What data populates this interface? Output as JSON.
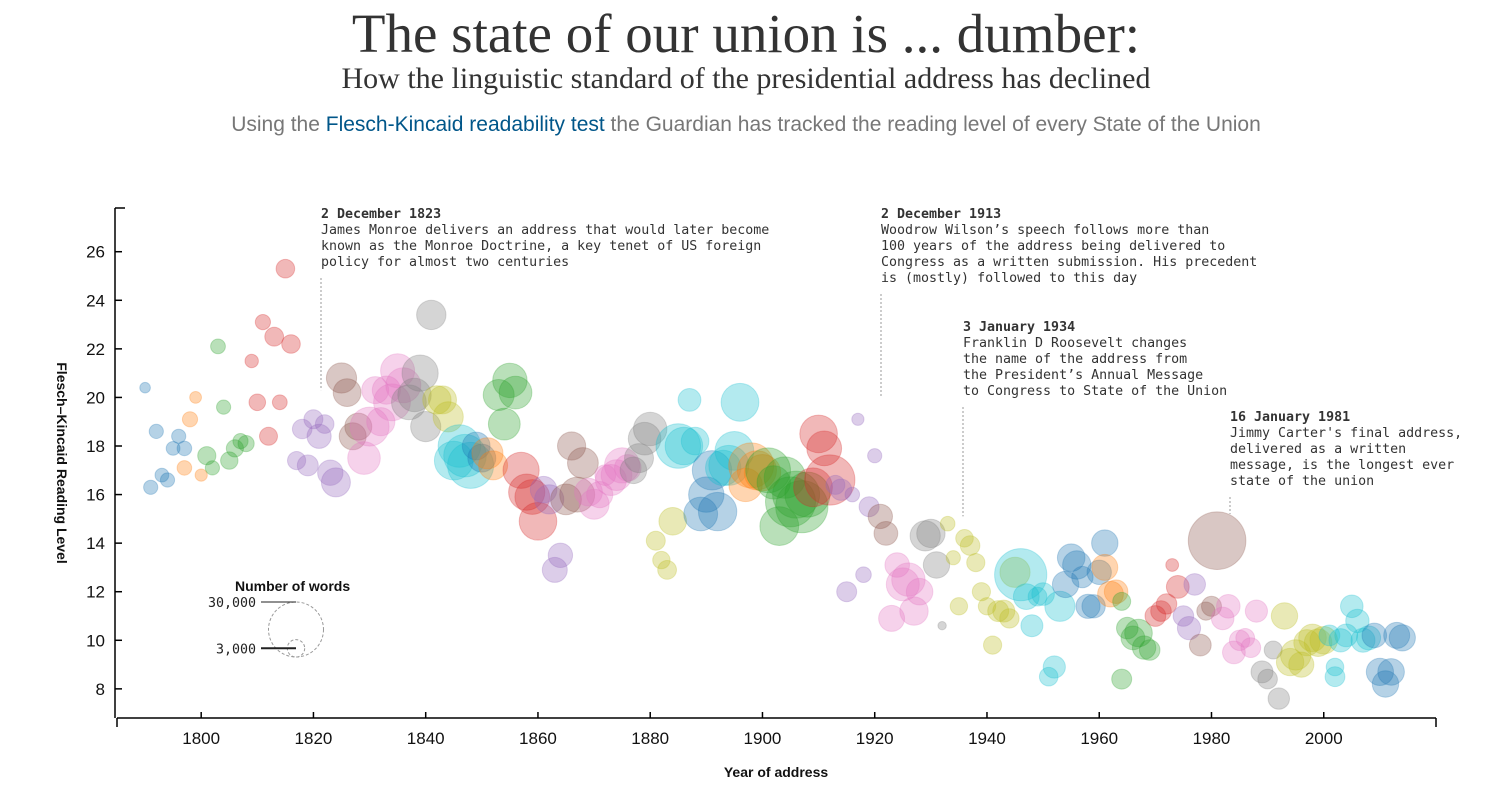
{
  "header": {
    "title": "The state of our union is ... dumber:",
    "subtitle": "How the linguistic standard of the presidential address has declined",
    "intro_prefix": "Using the ",
    "intro_link": "Flesch-Kincaid readability test",
    "intro_suffix": " the Guardian has tracked the reading level of every State of the Union"
  },
  "annotations": [
    {
      "date": "2 December 1823",
      "text": "James Monroe delivers an address that would later become\nknown as the Monroe Doctrine, a key tenet of US foreign\npolicy for almost two centuries"
    },
    {
      "date": "2 December 1913",
      "text": "Woodrow Wilson’s speech follows more than\n100 years of the address being delivered to\nCongress as a written submission. His precedent\nis (mostly) followed to this day"
    },
    {
      "date": "3 January 1934",
      "text": "Franklin D Roosevelt changes\nthe name of the address from\nthe President’s Annual Message\nto Congress to State of the Union"
    },
    {
      "date": "16 January 1981",
      "text": "Jimmy Carter's final address,\ndelivered as a written\nmessage, is the longest ever\nstate of the union"
    }
  ],
  "legend": {
    "title": "Number of words",
    "entries": [
      {
        "label": "30,000",
        "words": 30000
      },
      {
        "label": "3,000",
        "words": 3000
      }
    ]
  },
  "chart_data": {
    "type": "scatter",
    "xlabel": "Year of address",
    "ylabel": "Flesch–Kincaid Reading Level",
    "xlim": [
      1785,
      2020
    ],
    "ylim": [
      6.8,
      27.8
    ],
    "xticks": [
      1800,
      1820,
      1840,
      1860,
      1880,
      1900,
      1920,
      1940,
      1960,
      1980,
      2000
    ],
    "yticks": [
      8,
      10,
      12,
      14,
      16,
      18,
      20,
      22,
      24,
      26
    ],
    "size_encoding": "Number of words",
    "color_encoding": "President",
    "points": [
      [
        1790,
        20.4,
        1100,
        "#1f77b4"
      ],
      [
        1791,
        16.3,
        2000,
        "#1f77b4"
      ],
      [
        1792,
        18.6,
        2000,
        "#1f77b4"
      ],
      [
        1793,
        16.8,
        1900,
        "#1f77b4"
      ],
      [
        1794,
        16.6,
        2000,
        "#1f77b4"
      ],
      [
        1795,
        17.9,
        1900,
        "#1f77b4"
      ],
      [
        1796,
        18.4,
        2000,
        "#1f77b4"
      ],
      [
        1797,
        17.9,
        2100,
        "#1f77b4"
      ],
      [
        1797,
        17.1,
        2100,
        "#ff7f0e"
      ],
      [
        1798,
        19.1,
        2300,
        "#ff7f0e"
      ],
      [
        1799,
        20.0,
        1400,
        "#ff7f0e"
      ],
      [
        1800,
        16.8,
        1500,
        "#ff7f0e"
      ],
      [
        1801,
        17.6,
        3300,
        "#2ca02c"
      ],
      [
        1802,
        17.1,
        2000,
        "#2ca02c"
      ],
      [
        1803,
        22.1,
        2200,
        "#2ca02c"
      ],
      [
        1804,
        19.6,
        2000,
        "#2ca02c"
      ],
      [
        1805,
        17.4,
        3000,
        "#2ca02c"
      ],
      [
        1806,
        17.9,
        2900,
        "#2ca02c"
      ],
      [
        1807,
        18.2,
        2300,
        "#2ca02c"
      ],
      [
        1808,
        18.1,
        2600,
        "#2ca02c"
      ],
      [
        1809,
        21.5,
        1800,
        "#d62728"
      ],
      [
        1810,
        19.8,
        2700,
        "#d62728"
      ],
      [
        1811,
        23.1,
        2300,
        "#d62728"
      ],
      [
        1812,
        18.4,
        3200,
        "#d62728"
      ],
      [
        1813,
        22.5,
        3500,
        "#d62728"
      ],
      [
        1814,
        19.8,
        2200,
        "#d62728"
      ],
      [
        1815,
        25.3,
        3400,
        "#d62728"
      ],
      [
        1816,
        22.2,
        3400,
        "#d62728"
      ],
      [
        1817,
        17.4,
        3300,
        "#9467bd"
      ],
      [
        1818,
        18.7,
        3800,
        "#9467bd"
      ],
      [
        1819,
        17.2,
        4400,
        "#9467bd"
      ],
      [
        1820,
        19.1,
        3600,
        "#9467bd"
      ],
      [
        1821,
        18.4,
        5800,
        "#9467bd"
      ],
      [
        1822,
        18.9,
        3400,
        "#9467bd"
      ],
      [
        1823,
        16.9,
        6400,
        "#9467bd"
      ],
      [
        1824,
        16.5,
        8300,
        "#9467bd"
      ],
      [
        1825,
        20.8,
        9000,
        "#8c564b"
      ],
      [
        1826,
        20.2,
        7700,
        "#8c564b"
      ],
      [
        1827,
        18.4,
        7200,
        "#8c564b"
      ],
      [
        1828,
        18.8,
        7200,
        "#8c564b"
      ],
      [
        1829,
        17.5,
        10600,
        "#e377c2"
      ],
      [
        1830,
        18.8,
        15100,
        "#e377c2"
      ],
      [
        1831,
        20.3,
        7200,
        "#e377c2"
      ],
      [
        1832,
        19.0,
        7900,
        "#e377c2"
      ],
      [
        1833,
        20.3,
        7900,
        "#e377c2"
      ],
      [
        1834,
        19.8,
        13400,
        "#e377c2"
      ],
      [
        1835,
        21.1,
        11400,
        "#e377c2"
      ],
      [
        1836,
        20.5,
        12200,
        "#e377c2"
      ],
      [
        1837,
        19.8,
        12000,
        "#7f7f7f"
      ],
      [
        1838,
        20.1,
        11000,
        "#7f7f7f"
      ],
      [
        1839,
        21.0,
        13000,
        "#7f7f7f"
      ],
      [
        1840,
        18.8,
        9000,
        "#7f7f7f"
      ],
      [
        1841,
        23.4,
        8600,
        "#7f7f7f"
      ],
      [
        1842,
        19.9,
        8000,
        "#bcbd22"
      ],
      [
        1843,
        19.9,
        7800,
        "#bcbd22"
      ],
      [
        1844,
        19.2,
        9000,
        "#bcbd22"
      ],
      [
        1845,
        17.4,
        15000,
        "#17becf"
      ],
      [
        1846,
        18.0,
        18000,
        "#17becf"
      ],
      [
        1847,
        17.6,
        18000,
        "#17becf"
      ],
      [
        1848,
        17.2,
        21000,
        "#17becf"
      ],
      [
        1849,
        18.0,
        7700,
        "#1f77b4"
      ],
      [
        1850,
        17.5,
        7800,
        "#1f77b4"
      ],
      [
        1851,
        17.7,
        9700,
        "#ff7f0e"
      ],
      [
        1852,
        17.2,
        8300,
        "#ff7f0e"
      ],
      [
        1853,
        20.1,
        9500,
        "#2ca02c"
      ],
      [
        1854,
        18.9,
        10000,
        "#2ca02c"
      ],
      [
        1855,
        20.7,
        11700,
        "#2ca02c"
      ],
      [
        1856,
        20.2,
        10700,
        "#2ca02c"
      ],
      [
        1857,
        17.0,
        13000,
        "#d62728"
      ],
      [
        1858,
        16.1,
        13000,
        "#d62728"
      ],
      [
        1859,
        15.9,
        12000,
        "#d62728"
      ],
      [
        1860,
        14.9,
        14000,
        "#d62728"
      ],
      [
        1861,
        16.2,
        7000,
        "#9467bd"
      ],
      [
        1862,
        15.8,
        8400,
        "#9467bd"
      ],
      [
        1863,
        12.9,
        6200,
        "#9467bd"
      ],
      [
        1864,
        13.5,
        5900,
        "#9467bd"
      ],
      [
        1865,
        15.8,
        9400,
        "#8c564b"
      ],
      [
        1866,
        18.0,
        7900,
        "#8c564b"
      ],
      [
        1867,
        16.0,
        12100,
        "#8c564b"
      ],
      [
        1868,
        17.3,
        9400,
        "#8c564b"
      ],
      [
        1869,
        16.1,
        7700,
        "#e377c2"
      ],
      [
        1870,
        15.6,
        8900,
        "#e377c2"
      ],
      [
        1871,
        16.0,
        6800,
        "#e377c2"
      ],
      [
        1872,
        16.8,
        4300,
        "#e377c2"
      ],
      [
        1873,
        16.6,
        9500,
        "#e377c2"
      ],
      [
        1874,
        16.8,
        9400,
        "#e377c2"
      ],
      [
        1875,
        17.2,
        12300,
        "#e377c2"
      ],
      [
        1876,
        17.1,
        7000,
        "#e377c2"
      ],
      [
        1877,
        17.0,
        7000,
        "#7f7f7f"
      ],
      [
        1878,
        17.5,
        8300,
        "#7f7f7f"
      ],
      [
        1879,
        18.3,
        10500,
        "#7f7f7f"
      ],
      [
        1880,
        18.7,
        11000,
        "#7f7f7f"
      ],
      [
        1881,
        14.1,
        3600,
        "#bcbd22"
      ],
      [
        1882,
        13.3,
        3000,
        "#bcbd22"
      ],
      [
        1883,
        12.9,
        3500,
        "#bcbd22"
      ],
      [
        1884,
        14.9,
        7500,
        "#bcbd22"
      ],
      [
        1885,
        18.0,
        19800,
        "#17becf"
      ],
      [
        1886,
        18.0,
        14000,
        "#17becf"
      ],
      [
        1887,
        19.9,
        5200,
        "#17becf"
      ],
      [
        1888,
        18.2,
        7600,
        "#17becf"
      ],
      [
        1889,
        15.2,
        11300,
        "#1f77b4"
      ],
      [
        1890,
        16.0,
        12400,
        "#1f77b4"
      ],
      [
        1891,
        17.0,
        15400,
        "#1f77b4"
      ],
      [
        1892,
        15.3,
        14600,
        "#1f77b4"
      ],
      [
        1893,
        17.1,
        12400,
        "#17becf"
      ],
      [
        1894,
        17.2,
        15800,
        "#17becf"
      ],
      [
        1895,
        17.8,
        14900,
        "#17becf"
      ],
      [
        1896,
        19.8,
        14200,
        "#17becf"
      ],
      [
        1897,
        16.4,
        11000,
        "#ff7f0e"
      ],
      [
        1898,
        17.2,
        20000,
        "#ff7f0e"
      ],
      [
        1899,
        17.0,
        15300,
        "#ff7f0e"
      ],
      [
        1900,
        16.9,
        13100,
        "#ff7f0e"
      ],
      [
        1901,
        17.0,
        19900,
        "#2ca02c"
      ],
      [
        1902,
        16.5,
        11000,
        "#2ca02c"
      ],
      [
        1903,
        14.7,
        15000,
        "#2ca02c"
      ],
      [
        1904,
        16.7,
        17000,
        "#2ca02c"
      ],
      [
        1905,
        15.7,
        24800,
        "#2ca02c"
      ],
      [
        1906,
        16.0,
        22000,
        "#2ca02c"
      ],
      [
        1907,
        15.5,
        27000,
        "#2ca02c"
      ],
      [
        1908,
        16.0,
        20000,
        "#2ca02c"
      ],
      [
        1909,
        16.3,
        15000,
        "#d62728"
      ],
      [
        1910,
        18.5,
        14000,
        "#d62728"
      ],
      [
        1911,
        17.9,
        12000,
        "#d62728"
      ],
      [
        1912,
        16.6,
        25000,
        "#d62728"
      ],
      [
        1913,
        16.4,
        3600,
        "#9467bd"
      ],
      [
        1914,
        16.2,
        4500,
        "#9467bd"
      ],
      [
        1915,
        12.0,
        4000,
        "#9467bd"
      ],
      [
        1916,
        16.0,
        2100,
        "#9467bd"
      ],
      [
        1917,
        19.1,
        1500,
        "#9467bd"
      ],
      [
        1918,
        12.7,
        2400,
        "#9467bd"
      ],
      [
        1919,
        15.5,
        4000,
        "#9467bd"
      ],
      [
        1920,
        17.6,
        2000,
        "#9467bd"
      ],
      [
        1921,
        15.1,
        5900,
        "#8c564b"
      ],
      [
        1922,
        14.4,
        5600,
        "#8c564b"
      ],
      [
        1923,
        10.9,
        6700,
        "#e377c2"
      ],
      [
        1924,
        13.1,
        6000,
        "#e377c2"
      ],
      [
        1925,
        12.3,
        10800,
        "#e377c2"
      ],
      [
        1926,
        12.5,
        11000,
        "#e377c2"
      ],
      [
        1927,
        11.2,
        8000,
        "#e377c2"
      ],
      [
        1928,
        12.0,
        7000,
        "#e377c2"
      ],
      [
        1929,
        14.3,
        9000,
        "#7f7f7f"
      ],
      [
        1930,
        14.4,
        8000,
        "#7f7f7f"
      ],
      [
        1931,
        13.1,
        6900,
        "#7f7f7f"
      ],
      [
        1932,
        10.6,
        700,
        "#7f7f7f"
      ],
      [
        1933,
        14.8,
        2100,
        "#bcbd22"
      ],
      [
        1934,
        13.4,
        2000,
        "#bcbd22"
      ],
      [
        1935,
        11.4,
        3000,
        "#bcbd22"
      ],
      [
        1936,
        14.2,
        3100,
        "#bcbd22"
      ],
      [
        1937,
        13.9,
        3800,
        "#bcbd22"
      ],
      [
        1938,
        13.2,
        3300,
        "#bcbd22"
      ],
      [
        1939,
        12.0,
        3300,
        "#bcbd22"
      ],
      [
        1940,
        11.4,
        3000,
        "#bcbd22"
      ],
      [
        1941,
        9.8,
        3300,
        "#bcbd22"
      ],
      [
        1942,
        11.2,
        4400,
        "#bcbd22"
      ],
      [
        1943,
        11.2,
        4800,
        "#bcbd22"
      ],
      [
        1944,
        10.9,
        3700,
        "#bcbd22"
      ],
      [
        1945,
        12.8,
        9000,
        "#bcbd22"
      ],
      [
        1946,
        12.7,
        27000,
        "#17becf"
      ],
      [
        1947,
        11.8,
        6600,
        "#17becf"
      ],
      [
        1948,
        10.6,
        4800,
        "#17becf"
      ],
      [
        1949,
        11.8,
        3500,
        "#17becf"
      ],
      [
        1950,
        11.9,
        5100,
        "#17becf"
      ],
      [
        1951,
        8.5,
        3400,
        "#17becf"
      ],
      [
        1952,
        8.9,
        4900,
        "#17becf"
      ],
      [
        1953,
        11.4,
        9000,
        "#17becf"
      ],
      [
        1954,
        12.3,
        6900,
        "#1f77b4"
      ],
      [
        1955,
        13.4,
        7500,
        "#1f77b4"
      ],
      [
        1956,
        13.1,
        8000,
        "#1f77b4"
      ],
      [
        1957,
        12.6,
        4500,
        "#1f77b4"
      ],
      [
        1958,
        11.4,
        5800,
        "#1f77b4"
      ],
      [
        1959,
        11.4,
        5400,
        "#1f77b4"
      ],
      [
        1960,
        12.8,
        5900,
        "#1f77b4"
      ],
      [
        1961,
        14.0,
        6900,
        "#1f77b4"
      ],
      [
        1961,
        13.0,
        6700,
        "#ff7f0e"
      ],
      [
        1962,
        11.9,
        6600,
        "#ff7f0e"
      ],
      [
        1963,
        12.0,
        5500,
        "#ff7f0e"
      ],
      [
        1964,
        11.6,
        3200,
        "#2ca02c"
      ],
      [
        1964,
        8.4,
        4000,
        "#2ca02c"
      ],
      [
        1965,
        10.5,
        4600,
        "#2ca02c"
      ],
      [
        1966,
        10.1,
        5600,
        "#2ca02c"
      ],
      [
        1967,
        10.3,
        7500,
        "#2ca02c"
      ],
      [
        1968,
        9.7,
        5400,
        "#2ca02c"
      ],
      [
        1969,
        9.6,
        4200,
        "#2ca02c"
      ],
      [
        1970,
        11.0,
        4300,
        "#d62728"
      ],
      [
        1971,
        11.2,
        4200,
        "#d62728"
      ],
      [
        1972,
        11.5,
        4100,
        "#d62728"
      ],
      [
        1973,
        13.1,
        1600,
        "#d62728"
      ],
      [
        1974,
        12.2,
        5200,
        "#d62728"
      ],
      [
        1975,
        11.0,
        4200,
        "#9467bd"
      ],
      [
        1976,
        10.5,
        5300,
        "#9467bd"
      ],
      [
        1977,
        12.3,
        4600,
        "#9467bd"
      ],
      [
        1978,
        9.8,
        4700,
        "#8c564b"
      ],
      [
        1979,
        11.2,
        3300,
        "#8c564b"
      ],
      [
        1980,
        11.4,
        4000,
        "#8c564b"
      ],
      [
        1981,
        14.1,
        33000,
        "#8c564b"
      ],
      [
        1982,
        10.9,
        5100,
        "#e377c2"
      ],
      [
        1983,
        11.4,
        5500,
        "#e377c2"
      ],
      [
        1984,
        9.5,
        5200,
        "#e377c2"
      ],
      [
        1985,
        10.0,
        4100,
        "#e377c2"
      ],
      [
        1986,
        10.1,
        3500,
        "#e377c2"
      ],
      [
        1987,
        9.7,
        3900,
        "#e377c2"
      ],
      [
        1988,
        11.2,
        4900,
        "#e377c2"
      ],
      [
        1989,
        8.7,
        4800,
        "#7f7f7f"
      ],
      [
        1990,
        8.4,
        3800,
        "#7f7f7f"
      ],
      [
        1991,
        9.6,
        3200,
        "#7f7f7f"
      ],
      [
        1992,
        7.6,
        4500,
        "#7f7f7f"
      ],
      [
        1993,
        11.0,
        6900,
        "#bcbd22"
      ],
      [
        1994,
        9.1,
        7400,
        "#bcbd22"
      ],
      [
        1995,
        9.4,
        9200,
        "#bcbd22"
      ],
      [
        1996,
        9.0,
        6300,
        "#bcbd22"
      ],
      [
        1997,
        9.9,
        6800,
        "#bcbd22"
      ],
      [
        1998,
        10.1,
        7500,
        "#bcbd22"
      ],
      [
        1999,
        9.9,
        7600,
        "#bcbd22"
      ],
      [
        2000,
        10.0,
        7500,
        "#bcbd22"
      ],
      [
        2001,
        10.2,
        4300,
        "#17becf"
      ],
      [
        2002,
        8.5,
        3900,
        "#17becf"
      ],
      [
        2002,
        8.9,
        3100,
        "#17becf"
      ],
      [
        2003,
        10.0,
        5400,
        "#17becf"
      ],
      [
        2004,
        10.2,
        5200,
        "#17becf"
      ],
      [
        2005,
        11.4,
        5100,
        "#17becf"
      ],
      [
        2006,
        10.8,
        5400,
        "#17becf"
      ],
      [
        2007,
        10.0,
        5700,
        "#17becf"
      ],
      [
        2008,
        10.1,
        5700,
        "#17becf"
      ],
      [
        2009,
        10.2,
        6000,
        "#1f77b4"
      ],
      [
        2010,
        8.7,
        7300,
        "#1f77b4"
      ],
      [
        2011,
        8.2,
        6900,
        "#1f77b4"
      ],
      [
        2012,
        8.7,
        7000,
        "#1f77b4"
      ],
      [
        2013,
        10.2,
        6700,
        "#1f77b4"
      ],
      [
        2014,
        10.1,
        6800,
        "#1f77b4"
      ]
    ]
  }
}
